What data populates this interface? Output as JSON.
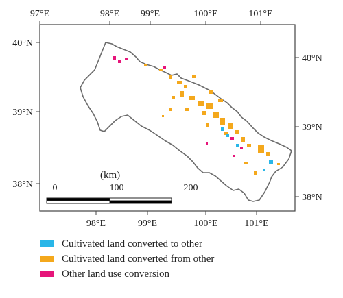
{
  "map": {
    "top_lon_labels": [
      "97°E",
      "98°E",
      "99°E",
      "100°E",
      "101°E"
    ],
    "bottom_lon_labels": [
      "98°E",
      "99°E",
      "100°E",
      "101°E"
    ],
    "left_lat_labels": [
      "40°N",
      "39°N",
      "38°N"
    ],
    "right_lat_labels": [
      "40°N",
      "39°N",
      "38°N"
    ],
    "scale_bar": {
      "unit": "(km)",
      "ticks": [
        "0",
        "100",
        "200"
      ]
    }
  },
  "legend": {
    "items": [
      {
        "label": "Cultivated land converted to other",
        "color": "#29b6e8"
      },
      {
        "label": "Cultivated land converted from other",
        "color": "#f4a81c"
      },
      {
        "label": "Other land use conversion",
        "color": "#e6157a"
      }
    ]
  },
  "colors": {
    "frame": "#444444",
    "boundary": "#6b6b6b"
  }
}
